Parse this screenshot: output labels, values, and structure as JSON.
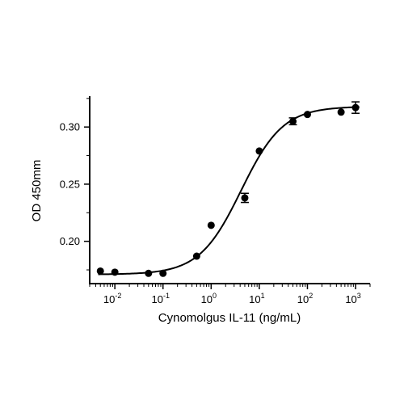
{
  "chart_data": {
    "type": "scatter",
    "xlabel": "Cynomolgus IL-11 (ng/mL)",
    "ylabel": "OD 450mm",
    "x_scale": "log",
    "xlim": [
      0.003,
      2000
    ],
    "ylim": [
      0.163,
      0.327
    ],
    "x_ticks": [
      {
        "value": 0.01,
        "base": "10",
        "exp": "-2"
      },
      {
        "value": 0.1,
        "base": "10",
        "exp": "-1"
      },
      {
        "value": 1,
        "base": "10",
        "exp": "0"
      },
      {
        "value": 10,
        "base": "10",
        "exp": "1"
      },
      {
        "value": 100,
        "base": "10",
        "exp": "2"
      },
      {
        "value": 1000,
        "base": "10",
        "exp": "3"
      }
    ],
    "y_ticks": [
      {
        "value": 0.2,
        "label": "0.20"
      },
      {
        "value": 0.25,
        "label": "0.25"
      },
      {
        "value": 0.3,
        "label": "0.30"
      }
    ],
    "points": [
      {
        "x": 0.005,
        "y": 0.174,
        "err": 0
      },
      {
        "x": 0.01,
        "y": 0.173,
        "err": 0
      },
      {
        "x": 0.05,
        "y": 0.172,
        "err": 0
      },
      {
        "x": 0.1,
        "y": 0.172,
        "err": 0
      },
      {
        "x": 0.5,
        "y": 0.187,
        "err": 0
      },
      {
        "x": 1,
        "y": 0.214,
        "err": 0
      },
      {
        "x": 5,
        "y": 0.238,
        "err": 0.004
      },
      {
        "x": 10,
        "y": 0.279,
        "err": 0
      },
      {
        "x": 50,
        "y": 0.305,
        "err": 0.003
      },
      {
        "x": 100,
        "y": 0.311,
        "err": 0
      },
      {
        "x": 500,
        "y": 0.313,
        "err": 0
      },
      {
        "x": 1000,
        "y": 0.317,
        "err": 0.005
      }
    ],
    "fit": {
      "model": "4PL",
      "bottom": 0.171,
      "top": 0.318,
      "ec50": 4.2,
      "hill": 1.0
    },
    "grid": false,
    "legend": "none"
  }
}
